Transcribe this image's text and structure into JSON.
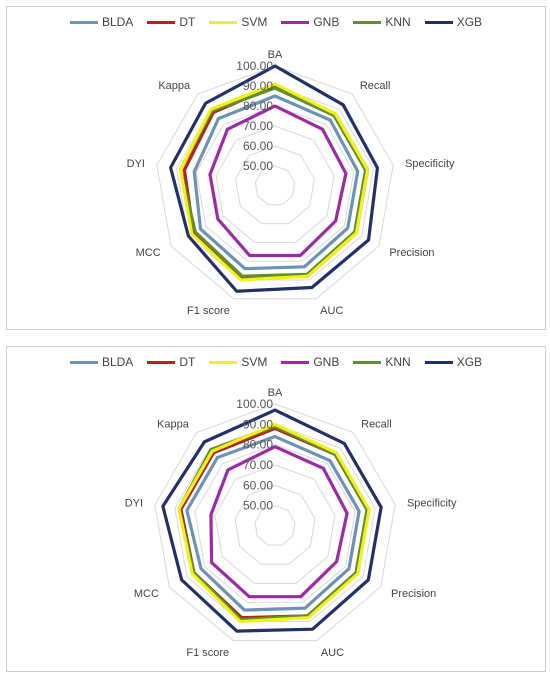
{
  "legend_colors": {
    "BLDA": "#6c93b5",
    "DT": "#b3241a",
    "SVM": "#f2f21a",
    "GNB": "#9b2aa6",
    "KNN": "#5f8f2e",
    "XGB": "#22306a"
  },
  "chart_data": [
    {
      "type": "radar",
      "axes": [
        "BA",
        "Recall",
        "Specificity",
        "Precision",
        "AUC",
        "F1 score",
        "MCC",
        "DYI",
        "Kappa"
      ],
      "ticks": [
        "50.00",
        "60.00",
        "70.00",
        "80.00",
        "90.00",
        "100.00"
      ],
      "range": [
        40,
        100
      ],
      "grid": true,
      "legend_position": "top",
      "series": [
        {
          "name": "BLDA",
          "values": [
            85,
            83,
            82,
            82,
            83,
            84,
            83,
            81,
            84
          ]
        },
        {
          "name": "DT",
          "values": [
            90,
            87,
            87,
            87,
            88,
            89,
            87,
            86,
            88
          ]
        },
        {
          "name": "SVM",
          "values": [
            91,
            87,
            87,
            87,
            88,
            90,
            88,
            88,
            90
          ]
        },
        {
          "name": "GNB",
          "values": [
            80,
            77,
            76,
            75,
            77,
            77,
            73,
            73,
            77
          ]
        },
        {
          "name": "KNN",
          "values": [
            89,
            86,
            86,
            86,
            87,
            88,
            86,
            88,
            89
          ]
        },
        {
          "name": "XGB",
          "values": [
            100,
            93,
            92,
            94,
            94,
            96,
            90,
            93,
            94
          ]
        }
      ]
    },
    {
      "type": "radar",
      "axes": [
        "BA",
        "Recall",
        "Specificity",
        "Precision",
        "AUC",
        "F1 score",
        "MCC",
        "DYI",
        "Kappa"
      ],
      "ticks": [
        "50.00",
        "60.00",
        "70.00",
        "80.00",
        "90.00",
        "100.00"
      ],
      "range": [
        40,
        100
      ],
      "grid": true,
      "legend_position": "top",
      "series": [
        {
          "name": "BLDA",
          "values": [
            84,
            82,
            82,
            82,
            83,
            84,
            82,
            84,
            84
          ]
        },
        {
          "name": "DT",
          "values": [
            88,
            86,
            86,
            86,
            87,
            88,
            86,
            87,
            87
          ]
        },
        {
          "name": "SVM",
          "values": [
            90,
            87,
            87,
            87,
            88,
            90,
            87,
            88,
            88
          ]
        },
        {
          "name": "GNB",
          "values": [
            79,
            77,
            76,
            75,
            77,
            77,
            76,
            72,
            76
          ]
        },
        {
          "name": "KNN",
          "values": [
            89,
            86,
            86,
            86,
            87,
            89,
            86,
            88,
            89
          ]
        },
        {
          "name": "XGB",
          "values": [
            97,
            93,
            93,
            93,
            94,
            95,
            93,
            96,
            94
          ]
        }
      ]
    }
  ]
}
